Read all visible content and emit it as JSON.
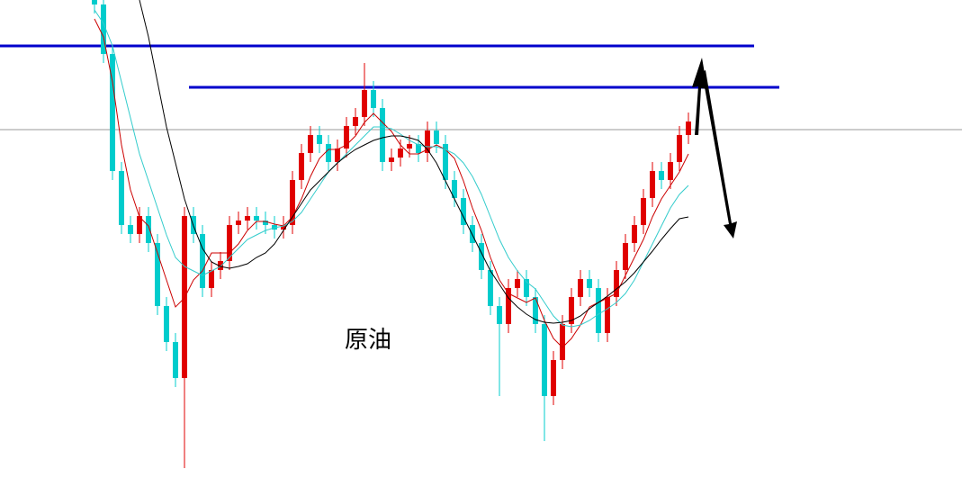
{
  "chart_data": {
    "type": "candlestick",
    "annotation": "原油",
    "ylim": [
      0,
      541
    ],
    "up_color": "#e00000",
    "down_color": "#00cccc",
    "open": [
      541,
      536,
      481,
      351,
      291,
      281,
      301,
      271,
      201,
      161,
      121,
      301,
      281,
      221,
      241,
      251,
      291,
      296,
      301,
      296,
      291,
      286,
      291,
      341,
      371,
      391,
      381,
      361,
      376,
      401,
      411,
      441,
      421,
      361,
      366,
      376,
      381,
      371,
      396,
      381,
      341,
      321,
      291,
      271,
      241,
      201,
      181,
      221,
      231,
      211,
      181,
      101,
      141,
      181,
      211,
      231,
      221,
      171,
      211,
      241,
      271,
      291,
      321,
      351,
      341,
      361,
      391
    ],
    "high": [
      551,
      546,
      491,
      361,
      301,
      311,
      311,
      281,
      211,
      171,
      311,
      311,
      291,
      251,
      261,
      301,
      306,
      311,
      311,
      306,
      301,
      301,
      351,
      381,
      401,
      401,
      391,
      386,
      411,
      421,
      471,
      451,
      431,
      376,
      386,
      391,
      391,
      406,
      406,
      391,
      351,
      331,
      301,
      281,
      251,
      211,
      231,
      241,
      241,
      221,
      191,
      151,
      191,
      221,
      241,
      241,
      231,
      221,
      251,
      281,
      301,
      331,
      361,
      361,
      371,
      401,
      416
    ],
    "low": [
      526,
      471,
      341,
      281,
      271,
      271,
      261,
      191,
      151,
      111,
      21,
      271,
      211,
      211,
      231,
      241,
      281,
      286,
      286,
      281,
      276,
      276,
      281,
      331,
      361,
      371,
      351,
      351,
      366,
      391,
      401,
      411,
      351,
      351,
      356,
      366,
      361,
      361,
      371,
      331,
      311,
      281,
      261,
      231,
      191,
      101,
      171,
      211,
      201,
      171,
      51,
      91,
      131,
      171,
      201,
      211,
      161,
      161,
      201,
      231,
      261,
      281,
      311,
      331,
      331,
      351,
      381
    ],
    "close": [
      536,
      481,
      351,
      291,
      281,
      301,
      271,
      201,
      161,
      121,
      301,
      281,
      221,
      241,
      251,
      291,
      296,
      301,
      296,
      291,
      286,
      291,
      341,
      371,
      391,
      381,
      361,
      376,
      401,
      411,
      441,
      421,
      361,
      366,
      376,
      381,
      371,
      396,
      381,
      341,
      321,
      291,
      271,
      241,
      201,
      181,
      221,
      231,
      211,
      181,
      101,
      141,
      181,
      211,
      231,
      221,
      171,
      211,
      241,
      271,
      291,
      321,
      351,
      341,
      361,
      391,
      406
    ],
    "series": [
      {
        "color": "#cc0000",
        "values": [
          520,
          500,
          450,
          380,
          330,
          300,
          290,
          260,
          230,
          200,
          210,
          230,
          240,
          260,
          260,
          260,
          270,
          285,
          295,
          295,
          292,
          290,
          300,
          320,
          345,
          365,
          375,
          375,
          380,
          390,
          405,
          415,
          405,
          395,
          380,
          370,
          370,
          375,
          380,
          375,
          365,
          340,
          310,
          285,
          255,
          230,
          215,
          210,
          205,
          210,
          185,
          165,
          155,
          165,
          180,
          200,
          205,
          210,
          215,
          235,
          255,
          275,
          300,
          320,
          335,
          350,
          370
        ]
      },
      {
        "color": "#33cccc",
        "values": [
          530,
          515,
          490,
          450,
          410,
          370,
          340,
          310,
          280,
          255,
          245,
          240,
          235,
          240,
          245,
          255,
          265,
          275,
          280,
          285,
          288,
          290,
          295,
          305,
          320,
          335,
          350,
          360,
          370,
          380,
          390,
          400,
          400,
          398,
          392,
          385,
          380,
          378,
          378,
          375,
          370,
          360,
          345,
          325,
          300,
          275,
          255,
          240,
          228,
          220,
          205,
          190,
          180,
          178,
          180,
          185,
          192,
          198,
          205,
          215,
          230,
          250,
          270,
          290,
          310,
          325,
          335
        ]
      },
      {
        "color": "#000000",
        "values": [
          null,
          null,
          null,
          null,
          null,
          541,
          500,
          450,
          400,
          360,
          320,
          290,
          265,
          250,
          245,
          243,
          245,
          248,
          255,
          260,
          270,
          285,
          300,
          315,
          330,
          340,
          350,
          360,
          368,
          375,
          380,
          385,
          388,
          390,
          390,
          388,
          385,
          375,
          360,
          340,
          320,
          300,
          280,
          260,
          240,
          225,
          210,
          200,
          192,
          186,
          183,
          182,
          183,
          185,
          190,
          198,
          205,
          212,
          220,
          228,
          238,
          250,
          262,
          275,
          287,
          298,
          300
        ]
      }
    ],
    "hlines": [
      {
        "value": 490,
        "color": "#0000cc"
      },
      {
        "value": 444,
        "color": "#0000cc"
      },
      {
        "value": 397,
        "color": "#999999"
      }
    ]
  }
}
